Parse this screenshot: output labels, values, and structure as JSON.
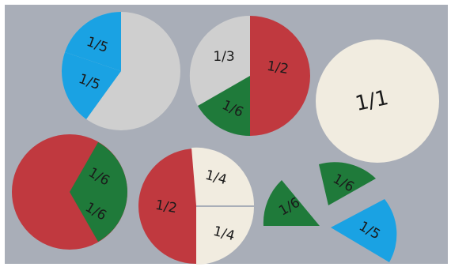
{
  "colors": {
    "background": "#a9aeb8",
    "red": "#c0393f",
    "grey": "#cfcfcf",
    "cream": "#f1ece0",
    "green": "#1f7a3a",
    "blue": "#1aa2e3"
  },
  "labels": {
    "circle1_fifth_a": "1/5",
    "circle1_fifth_b": "1/5",
    "circle2_third": "1/3",
    "circle2_half": "1/2",
    "circle2_sixth": "1/6",
    "whole": "1/1",
    "circle4_sixth_a": "1/6",
    "circle4_sixth_b": "1/6",
    "circle5_half": "1/2",
    "circle5_quarter_a": "1/4",
    "circle5_quarter_b": "1/4",
    "loose_sixth_a": "1/6",
    "loose_sixth_b": "1/6",
    "loose_fifth": "1/5"
  }
}
